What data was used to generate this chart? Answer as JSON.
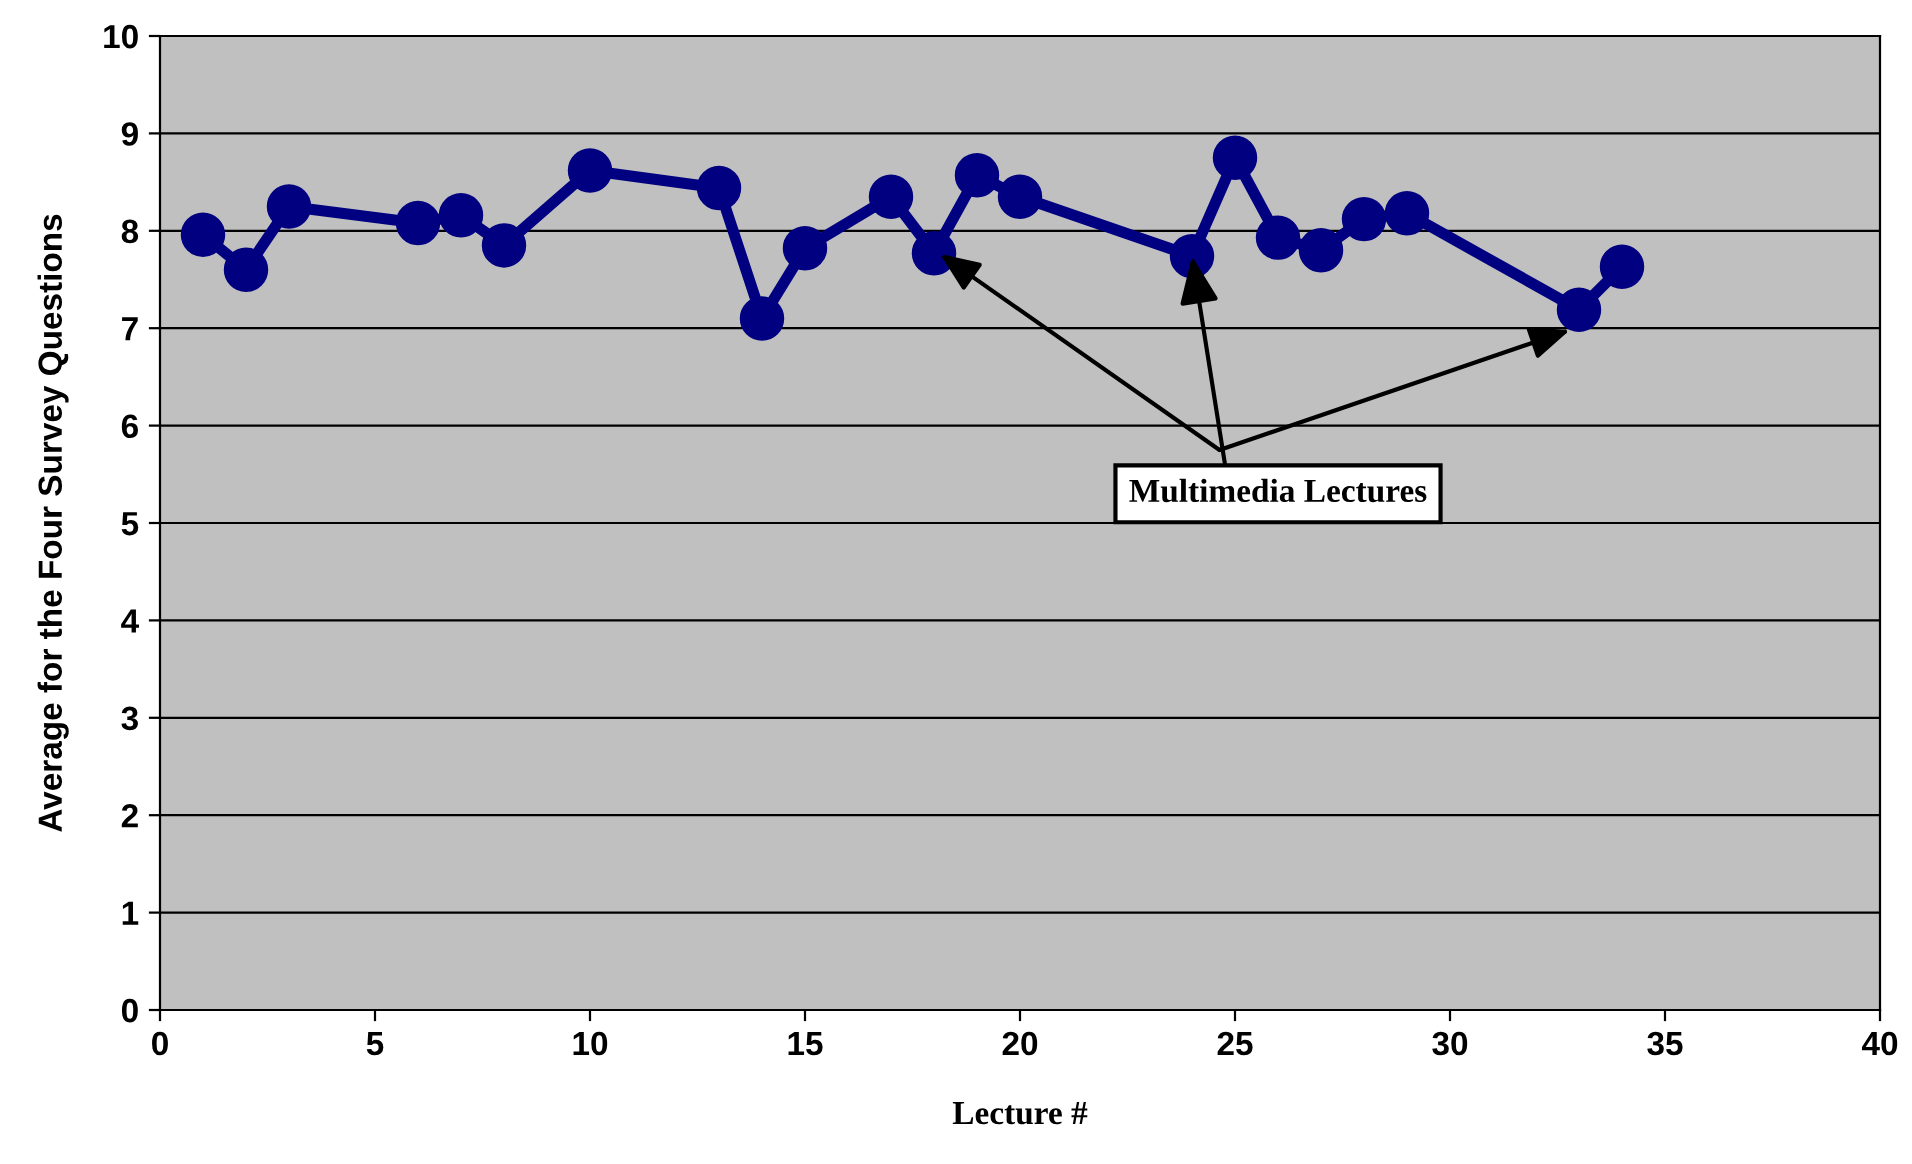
{
  "chart_data": {
    "type": "line",
    "xlabel": "Lecture #",
    "ylabel": "Average for the Four Survey Questions",
    "x": [
      1,
      2,
      3,
      6,
      7,
      8,
      10,
      13,
      14,
      15,
      17,
      18,
      19,
      20,
      24,
      25,
      26,
      27,
      28,
      29,
      33,
      34
    ],
    "series": [
      {
        "color": "#000080",
        "values": [
          7.96,
          7.6,
          8.25,
          8.08,
          8.16,
          7.85,
          8.62,
          8.44,
          7.1,
          7.82,
          8.35,
          7.77,
          8.57,
          8.35,
          7.74,
          8.75,
          7.93,
          7.8,
          8.12,
          8.18,
          7.19,
          7.63
        ]
      }
    ],
    "xlim": [
      0,
      40
    ],
    "xticks": [
      0,
      5,
      10,
      15,
      20,
      25,
      30,
      35,
      40
    ],
    "ylim": [
      0,
      10
    ],
    "yticks": [
      0,
      1,
      2,
      3,
      4,
      5,
      6,
      7,
      8,
      9,
      10
    ],
    "grid": "y",
    "marker": "circle",
    "line_style": "solid",
    "annotations": [
      {
        "text": "Multimedia Lectures",
        "x": 24,
        "y": 7.74
      }
    ]
  }
}
